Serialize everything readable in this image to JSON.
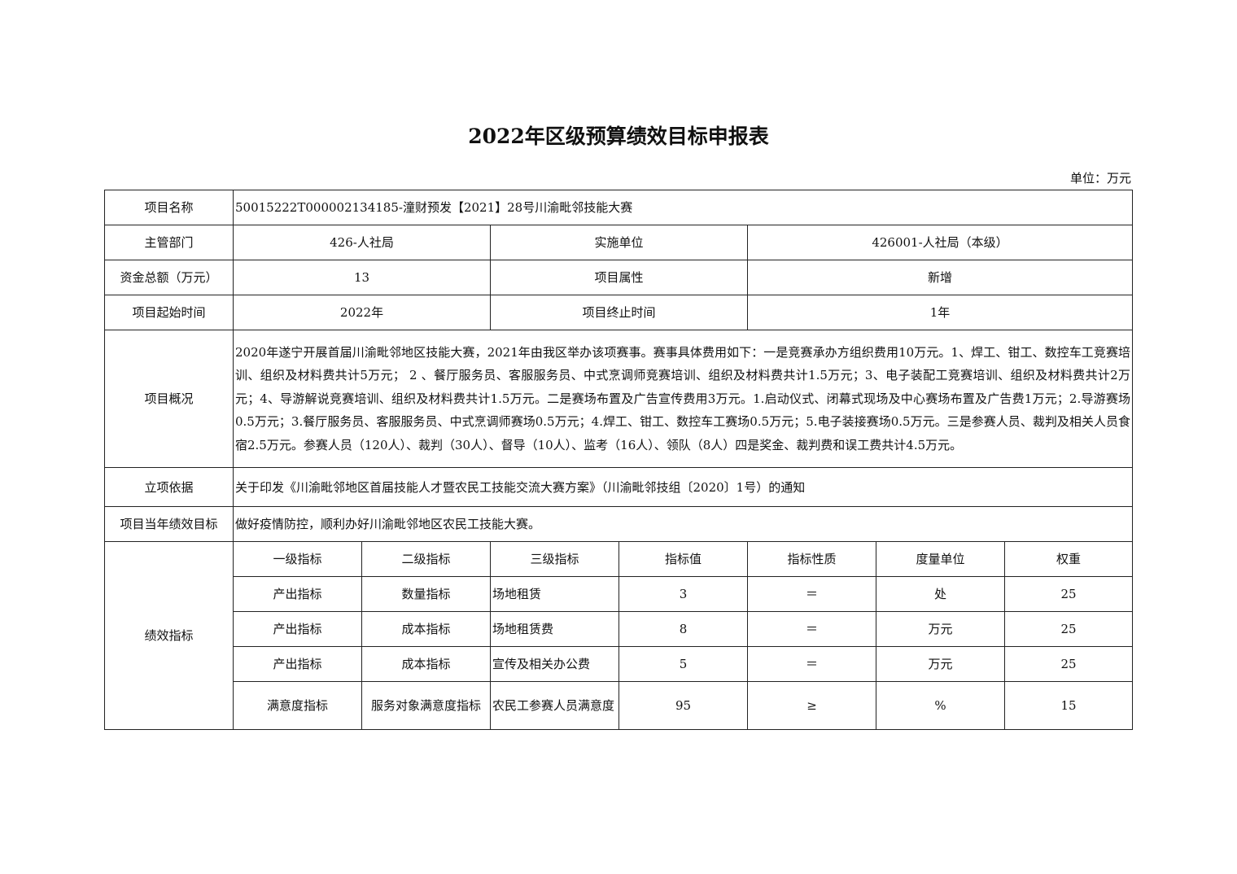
{
  "title": "2022年区级预算绩效目标申报表",
  "unit": "单位：万元",
  "rows": {
    "project_name": {
      "label": "项目名称",
      "value": "50015222T000002134185-潼财预发【2021】28号川渝毗邻技能大赛"
    },
    "department": {
      "label": "主管部门",
      "value": "426-人社局",
      "label2": "实施单位",
      "value2": "426001-人社局（本级）"
    },
    "funding": {
      "label": "资金总额（万元）",
      "value": "13",
      "label2": "项目属性",
      "value2": "新增"
    },
    "time": {
      "label": "项目起始时间",
      "value": "2022年",
      "label2": "项目终止时间",
      "value2": "1年"
    },
    "overview": {
      "label": "项目概况",
      "value": "2020年遂宁开展首届川渝毗邻地区技能大赛，2021年由我区举办该项赛事。赛事具体费用如下：一是竞赛承办方组织费用10万元。1、焊工、钳工、数控车工竞赛培训、组织及材料费共计5万元； 2 、餐厅服务员、客服服务员、中式烹调师竞赛培训、组织及材料费共计1.5万元；3、电子装配工竞赛培训、组织及材料费共计2万元；4、导游解说竞赛培训、组织及材料费共计1.5万元。二是赛场布置及广告宣传费用3万元。1.启动仪式、闭幕式现场及中心赛场布置及广告费1万元；2.导游赛场0.5万元；3.餐厅服务员、客服服务员、中式烹调师赛场0.5万元；4.焊工、钳工、数控车工赛场0.5万元；5.电子装接赛场0.5万元。三是参赛人员、裁判及相关人员食宿2.5万元。参赛人员（120人）、裁判（30人）、督导（10人）、监考（16人）、领队（8人）四是奖金、裁判费和误工费共计4.5万元。"
    },
    "basis": {
      "label": "立项依据",
      "value": "关于印发《川渝毗邻地区首届技能人才暨农民工技能交流大赛方案》（川渝毗邻技组〔2020〕1号）的通知"
    },
    "goal": {
      "label": "项目当年绩效目标",
      "value": "做好疫情防控，顺利办好川渝毗邻地区农民工技能大赛。"
    }
  },
  "indicators": {
    "label": "绩效指标",
    "headers": [
      "一级指标",
      "二级指标",
      "三级指标",
      "指标值",
      "指标性质",
      "度量单位",
      "权重"
    ],
    "rows": [
      [
        "产出指标",
        "数量指标",
        "场地租赁",
        "3",
        "＝",
        "处",
        "25"
      ],
      [
        "产出指标",
        "成本指标",
        "场地租赁费",
        "8",
        "＝",
        "万元",
        "25"
      ],
      [
        "产出指标",
        "成本指标",
        "宣传及相关办公费",
        "5",
        "＝",
        "万元",
        "25"
      ],
      [
        "满意度指标",
        "服务对象满意度指标",
        "农民工参赛人员满意度",
        "95",
        "≥",
        "%",
        "15"
      ]
    ]
  }
}
